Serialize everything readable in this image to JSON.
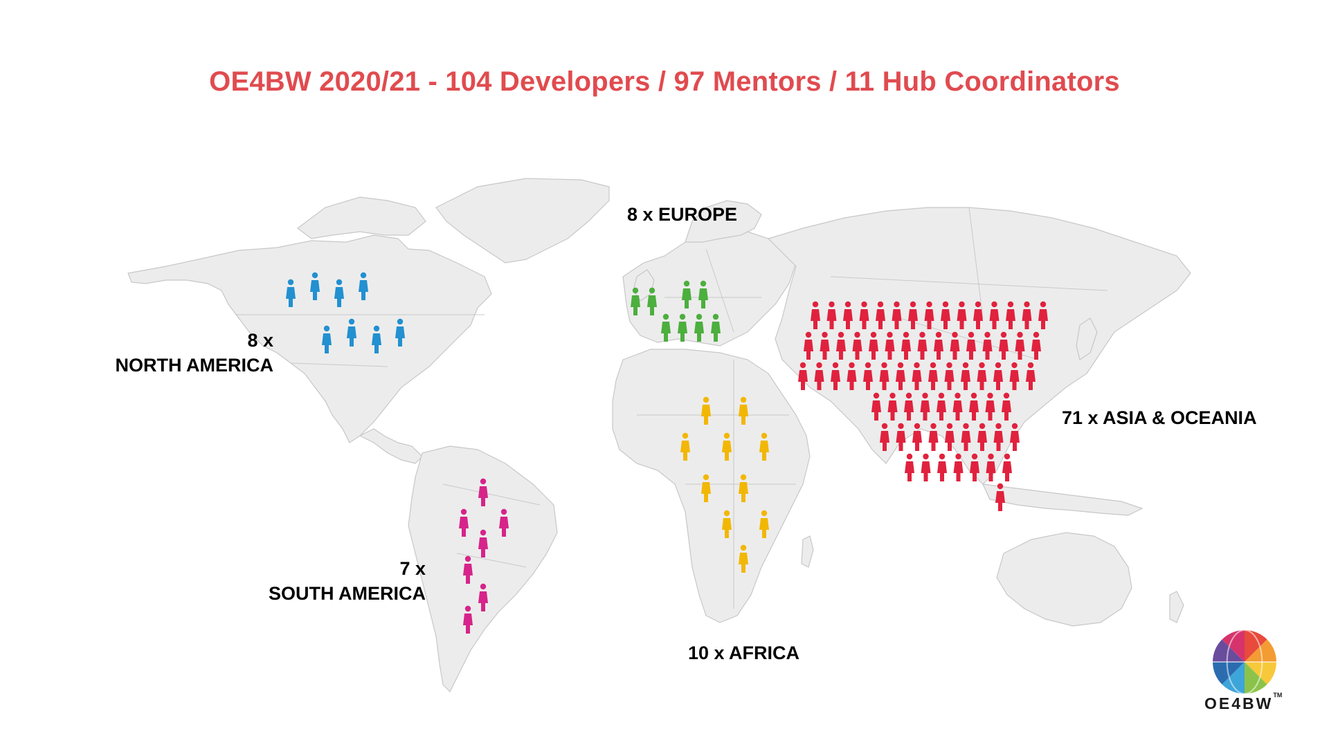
{
  "title": "OE4BW 2020/21 -  104 Developers / 97 Mentors / 11 Hub Coordinators",
  "regions": [
    {
      "key": "europe",
      "label": "8 x EUROPE",
      "count": 8,
      "color": "#4caf3e"
    },
    {
      "key": "north_america",
      "label_line1": "8 x",
      "label_line2": "NORTH AMERICA",
      "count": 8,
      "color": "#2290d1"
    },
    {
      "key": "south_america",
      "label_line1": "7 x",
      "label_line2": "SOUTH AMERICA",
      "count": 7,
      "color": "#d6248a"
    },
    {
      "key": "africa",
      "label": "10 x AFRICA",
      "count": 10,
      "color": "#f2b705"
    },
    {
      "key": "asia_oceania",
      "label": "71 x ASIA & OCEANIA",
      "count": 71,
      "color": "#e0223e"
    }
  ],
  "logo": {
    "text": "OE4BW",
    "trademark": "TM",
    "colors": [
      "#e84a3c",
      "#f39c33",
      "#f7c83a",
      "#8bc34a",
      "#3da5d9",
      "#2b6cb0",
      "#6a4c9c",
      "#d6336c"
    ]
  }
}
